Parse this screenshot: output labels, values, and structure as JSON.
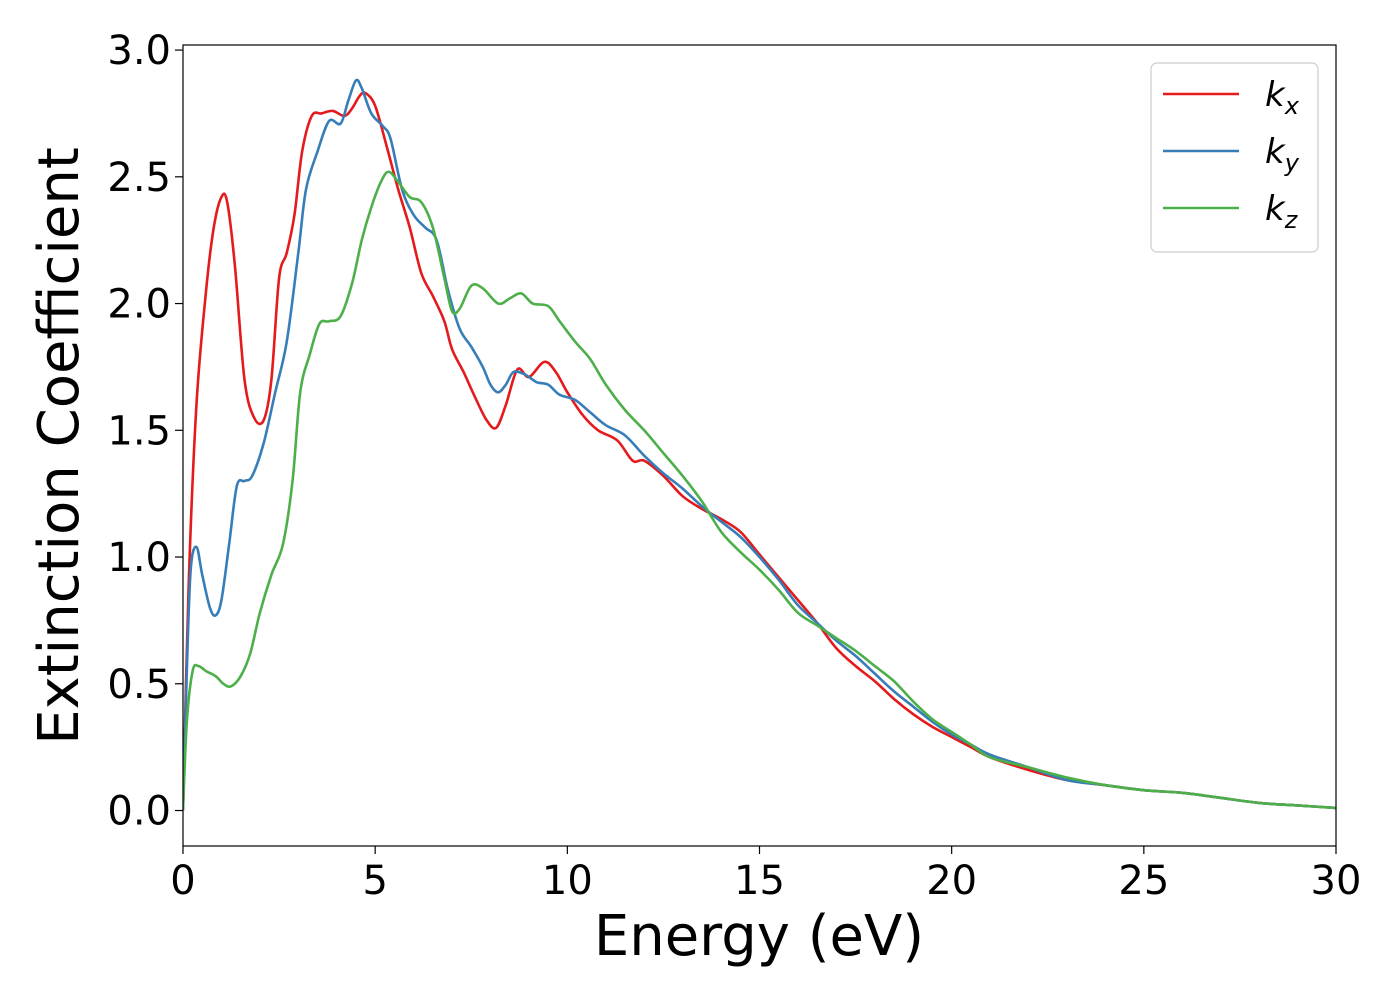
{
  "chart_data": {
    "type": "line",
    "title": "",
    "xlabel": "Energy (eV)",
    "ylabel": "Extinction Coefficient",
    "xlim": [
      0,
      30
    ],
    "ylim": [
      -0.14,
      3.02
    ],
    "xticks": [
      "0",
      "5",
      "10",
      "15",
      "20",
      "25",
      "30"
    ],
    "yticks": [
      "0.0",
      "0.5",
      "1.0",
      "1.5",
      "2.0",
      "2.5",
      "3.0"
    ],
    "grid": false,
    "legend_position": "top-right",
    "series": [
      {
        "name": "k",
        "subscript": "x",
        "color": "#e41a1c",
        "points": [
          [
            0,
            0
          ],
          [
            0.15,
            0.9
          ],
          [
            0.35,
            1.6
          ],
          [
            0.6,
            2.05
          ],
          [
            0.8,
            2.3
          ],
          [
            1.0,
            2.42
          ],
          [
            1.15,
            2.4
          ],
          [
            1.35,
            2.15
          ],
          [
            1.6,
            1.7
          ],
          [
            1.85,
            1.55
          ],
          [
            2.1,
            1.54
          ],
          [
            2.3,
            1.7
          ],
          [
            2.5,
            2.1
          ],
          [
            2.7,
            2.2
          ],
          [
            2.9,
            2.35
          ],
          [
            3.1,
            2.6
          ],
          [
            3.35,
            2.74
          ],
          [
            3.6,
            2.75
          ],
          [
            3.9,
            2.76
          ],
          [
            4.2,
            2.74
          ],
          [
            4.4,
            2.77
          ],
          [
            4.6,
            2.82
          ],
          [
            4.75,
            2.83
          ],
          [
            5.0,
            2.78
          ],
          [
            5.3,
            2.62
          ],
          [
            5.6,
            2.45
          ],
          [
            5.9,
            2.3
          ],
          [
            6.2,
            2.12
          ],
          [
            6.5,
            2.03
          ],
          [
            6.8,
            1.93
          ],
          [
            7.0,
            1.82
          ],
          [
            7.3,
            1.73
          ],
          [
            7.6,
            1.63
          ],
          [
            7.9,
            1.54
          ],
          [
            8.15,
            1.51
          ],
          [
            8.4,
            1.6
          ],
          [
            8.7,
            1.74
          ],
          [
            9.0,
            1.71
          ],
          [
            9.4,
            1.77
          ],
          [
            9.7,
            1.73
          ],
          [
            10.0,
            1.65
          ],
          [
            10.4,
            1.56
          ],
          [
            10.8,
            1.5
          ],
          [
            11.3,
            1.46
          ],
          [
            11.7,
            1.38
          ],
          [
            12.0,
            1.38
          ],
          [
            12.5,
            1.32
          ],
          [
            13.0,
            1.24
          ],
          [
            13.5,
            1.19
          ],
          [
            14.0,
            1.15
          ],
          [
            14.5,
            1.1
          ],
          [
            15.0,
            1.01
          ],
          [
            15.5,
            0.92
          ],
          [
            16.0,
            0.83
          ],
          [
            16.5,
            0.74
          ],
          [
            17.0,
            0.64
          ],
          [
            17.5,
            0.57
          ],
          [
            18.0,
            0.51
          ],
          [
            18.5,
            0.44
          ],
          [
            19.0,
            0.38
          ],
          [
            19.5,
            0.33
          ],
          [
            20.0,
            0.29
          ],
          [
            20.5,
            0.25
          ],
          [
            21.0,
            0.21
          ],
          [
            22.0,
            0.16
          ],
          [
            23.0,
            0.12
          ],
          [
            24.0,
            0.1
          ],
          [
            25.0,
            0.08
          ],
          [
            26.0,
            0.07
          ],
          [
            27.0,
            0.05
          ],
          [
            28.0,
            0.03
          ],
          [
            29.0,
            0.02
          ],
          [
            30.0,
            0.01
          ]
        ]
      },
      {
        "name": "k",
        "subscript": "y",
        "color": "#377eb8",
        "points": [
          [
            0,
            0
          ],
          [
            0.1,
            0.55
          ],
          [
            0.2,
            0.95
          ],
          [
            0.35,
            1.04
          ],
          [
            0.5,
            0.93
          ],
          [
            0.7,
            0.8
          ],
          [
            0.85,
            0.77
          ],
          [
            1.0,
            0.83
          ],
          [
            1.2,
            1.05
          ],
          [
            1.4,
            1.28
          ],
          [
            1.6,
            1.3
          ],
          [
            1.8,
            1.32
          ],
          [
            2.1,
            1.45
          ],
          [
            2.4,
            1.65
          ],
          [
            2.7,
            1.85
          ],
          [
            3.0,
            2.2
          ],
          [
            3.2,
            2.45
          ],
          [
            3.5,
            2.6
          ],
          [
            3.8,
            2.72
          ],
          [
            4.1,
            2.71
          ],
          [
            4.3,
            2.8
          ],
          [
            4.5,
            2.88
          ],
          [
            4.65,
            2.85
          ],
          [
            4.9,
            2.75
          ],
          [
            5.2,
            2.7
          ],
          [
            5.4,
            2.65
          ],
          [
            5.7,
            2.45
          ],
          [
            6.0,
            2.35
          ],
          [
            6.3,
            2.3
          ],
          [
            6.6,
            2.25
          ],
          [
            6.9,
            2.05
          ],
          [
            7.2,
            1.9
          ],
          [
            7.5,
            1.83
          ],
          [
            7.8,
            1.75
          ],
          [
            8.0,
            1.68
          ],
          [
            8.2,
            1.65
          ],
          [
            8.4,
            1.68
          ],
          [
            8.6,
            1.73
          ],
          [
            8.9,
            1.72
          ],
          [
            9.2,
            1.69
          ],
          [
            9.5,
            1.68
          ],
          [
            9.8,
            1.64
          ],
          [
            10.2,
            1.62
          ],
          [
            10.6,
            1.57
          ],
          [
            11.0,
            1.52
          ],
          [
            11.5,
            1.48
          ],
          [
            12.0,
            1.4
          ],
          [
            12.5,
            1.33
          ],
          [
            13.0,
            1.27
          ],
          [
            13.5,
            1.2
          ],
          [
            14.0,
            1.14
          ],
          [
            14.5,
            1.08
          ],
          [
            15.0,
            1.0
          ],
          [
            15.5,
            0.91
          ],
          [
            16.0,
            0.81
          ],
          [
            16.5,
            0.74
          ],
          [
            17.0,
            0.67
          ],
          [
            17.5,
            0.61
          ],
          [
            18.0,
            0.54
          ],
          [
            18.5,
            0.47
          ],
          [
            19.0,
            0.41
          ],
          [
            19.5,
            0.35
          ],
          [
            20.0,
            0.3
          ],
          [
            20.5,
            0.26
          ],
          [
            21.0,
            0.22
          ],
          [
            22.0,
            0.17
          ],
          [
            23.0,
            0.12
          ],
          [
            24.0,
            0.1
          ],
          [
            25.0,
            0.08
          ],
          [
            26.0,
            0.07
          ],
          [
            27.0,
            0.05
          ],
          [
            28.0,
            0.03
          ],
          [
            29.0,
            0.02
          ],
          [
            30.0,
            0.01
          ]
        ]
      },
      {
        "name": "k",
        "subscript": "z",
        "color": "#4daf4a",
        "points": [
          [
            0,
            0
          ],
          [
            0.1,
            0.35
          ],
          [
            0.25,
            0.55
          ],
          [
            0.4,
            0.57
          ],
          [
            0.6,
            0.55
          ],
          [
            0.85,
            0.53
          ],
          [
            1.05,
            0.5
          ],
          [
            1.25,
            0.49
          ],
          [
            1.5,
            0.53
          ],
          [
            1.75,
            0.62
          ],
          [
            2.0,
            0.78
          ],
          [
            2.3,
            0.93
          ],
          [
            2.6,
            1.05
          ],
          [
            2.85,
            1.3
          ],
          [
            3.05,
            1.65
          ],
          [
            3.3,
            1.8
          ],
          [
            3.55,
            1.92
          ],
          [
            3.8,
            1.93
          ],
          [
            4.1,
            1.95
          ],
          [
            4.4,
            2.08
          ],
          [
            4.65,
            2.25
          ],
          [
            4.9,
            2.38
          ],
          [
            5.15,
            2.48
          ],
          [
            5.35,
            2.52
          ],
          [
            5.6,
            2.48
          ],
          [
            5.9,
            2.42
          ],
          [
            6.2,
            2.4
          ],
          [
            6.5,
            2.3
          ],
          [
            6.8,
            2.1
          ],
          [
            7.0,
            1.97
          ],
          [
            7.2,
            1.98
          ],
          [
            7.5,
            2.07
          ],
          [
            7.8,
            2.06
          ],
          [
            8.2,
            2.0
          ],
          [
            8.5,
            2.02
          ],
          [
            8.8,
            2.04
          ],
          [
            9.1,
            2.0
          ],
          [
            9.5,
            1.99
          ],
          [
            9.8,
            1.93
          ],
          [
            10.2,
            1.85
          ],
          [
            10.6,
            1.78
          ],
          [
            11.0,
            1.68
          ],
          [
            11.5,
            1.58
          ],
          [
            12.0,
            1.5
          ],
          [
            12.5,
            1.41
          ],
          [
            13.0,
            1.32
          ],
          [
            13.5,
            1.22
          ],
          [
            14.0,
            1.1
          ],
          [
            14.5,
            1.02
          ],
          [
            15.0,
            0.95
          ],
          [
            15.5,
            0.87
          ],
          [
            16.0,
            0.78
          ],
          [
            16.5,
            0.73
          ],
          [
            17.0,
            0.68
          ],
          [
            17.5,
            0.63
          ],
          [
            18.0,
            0.57
          ],
          [
            18.5,
            0.51
          ],
          [
            19.0,
            0.43
          ],
          [
            19.5,
            0.36
          ],
          [
            20.0,
            0.31
          ],
          [
            20.5,
            0.26
          ],
          [
            21.0,
            0.21
          ],
          [
            22.0,
            0.17
          ],
          [
            23.0,
            0.13
          ],
          [
            24.0,
            0.1
          ],
          [
            25.0,
            0.08
          ],
          [
            26.0,
            0.07
          ],
          [
            27.0,
            0.05
          ],
          [
            28.0,
            0.03
          ],
          [
            29.0,
            0.02
          ],
          [
            30.0,
            0.01
          ]
        ]
      }
    ]
  }
}
